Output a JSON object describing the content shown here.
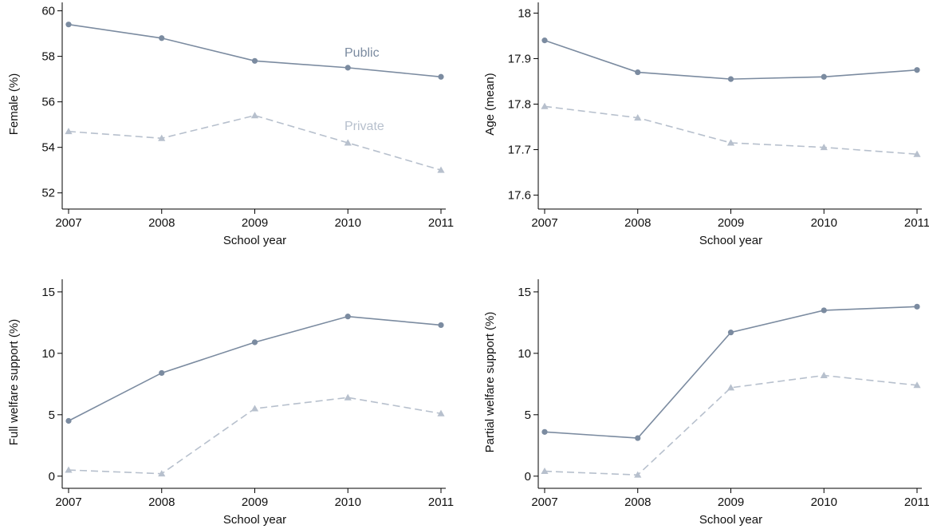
{
  "series_styles": {
    "public": {
      "color": "#7b8ba0",
      "marker": "circle"
    },
    "private": {
      "color": "#b7c0cd",
      "marker": "triangle",
      "dashed": true
    }
  },
  "chart_data": [
    {
      "type": "line",
      "title": "",
      "xlabel": "School year",
      "ylabel": "Female (%)",
      "x": [
        2007,
        2008,
        2009,
        2010,
        2011
      ],
      "xticks": [
        "2007",
        "2008",
        "2009",
        "2010",
        "2011"
      ],
      "ylim": [
        51.5,
        60.3
      ],
      "yticks": [
        52,
        54,
        56,
        58,
        60
      ],
      "ytick_labels": [
        "52",
        "54",
        "56",
        "58",
        "60"
      ],
      "series": [
        {
          "key": "public",
          "name": "Public",
          "values": [
            59.4,
            58.8,
            57.8,
            57.5,
            57.1
          ]
        },
        {
          "key": "private",
          "name": "Private",
          "values": [
            54.7,
            54.4,
            55.4,
            54.2,
            53.0
          ]
        }
      ]
    },
    {
      "type": "line",
      "title": "",
      "xlabel": "School year",
      "ylabel": "Age (mean)",
      "x": [
        2007,
        2008,
        2009,
        2010,
        2011
      ],
      "xticks": [
        "2007",
        "2008",
        "2009",
        "2010",
        "2011"
      ],
      "ylim": [
        17.58,
        18.02
      ],
      "yticks": [
        17.6,
        17.7,
        17.8,
        17.9,
        18.0
      ],
      "ytick_labels": [
        "17.6",
        "17.7",
        "17.8",
        "17.9",
        "18"
      ],
      "series": [
        {
          "key": "public",
          "values": [
            17.94,
            17.87,
            17.855,
            17.86,
            17.875
          ]
        },
        {
          "key": "private",
          "values": [
            17.795,
            17.77,
            17.715,
            17.705,
            17.69
          ]
        }
      ]
    },
    {
      "type": "line",
      "title": "",
      "xlabel": "School year",
      "ylabel": "Full welfare support (%)",
      "x": [
        2007,
        2008,
        2009,
        2010,
        2011
      ],
      "xticks": [
        "2007",
        "2008",
        "2009",
        "2010",
        "2011"
      ],
      "ylim": [
        -0.6,
        15.9
      ],
      "yticks": [
        0,
        5,
        10,
        15
      ],
      "ytick_labels": [
        "0",
        "5",
        "10",
        "15"
      ],
      "series": [
        {
          "key": "public",
          "values": [
            4.5,
            8.4,
            10.9,
            13.0,
            12.3
          ]
        },
        {
          "key": "private",
          "values": [
            0.5,
            0.2,
            5.5,
            6.4,
            5.1
          ]
        }
      ]
    },
    {
      "type": "line",
      "title": "",
      "xlabel": "School year",
      "ylabel": "Partial welfare support (%)",
      "x": [
        2007,
        2008,
        2009,
        2010,
        2011
      ],
      "xticks": [
        "2007",
        "2008",
        "2009",
        "2010",
        "2011"
      ],
      "ylim": [
        -0.6,
        15.9
      ],
      "yticks": [
        0,
        5,
        10,
        15
      ],
      "ytick_labels": [
        "0",
        "5",
        "10",
        "15"
      ],
      "series": [
        {
          "key": "public",
          "values": [
            3.6,
            3.1,
            11.7,
            13.5,
            13.8
          ]
        },
        {
          "key": "private",
          "values": [
            0.4,
            0.1,
            7.2,
            8.2,
            7.4
          ]
        }
      ]
    }
  ]
}
